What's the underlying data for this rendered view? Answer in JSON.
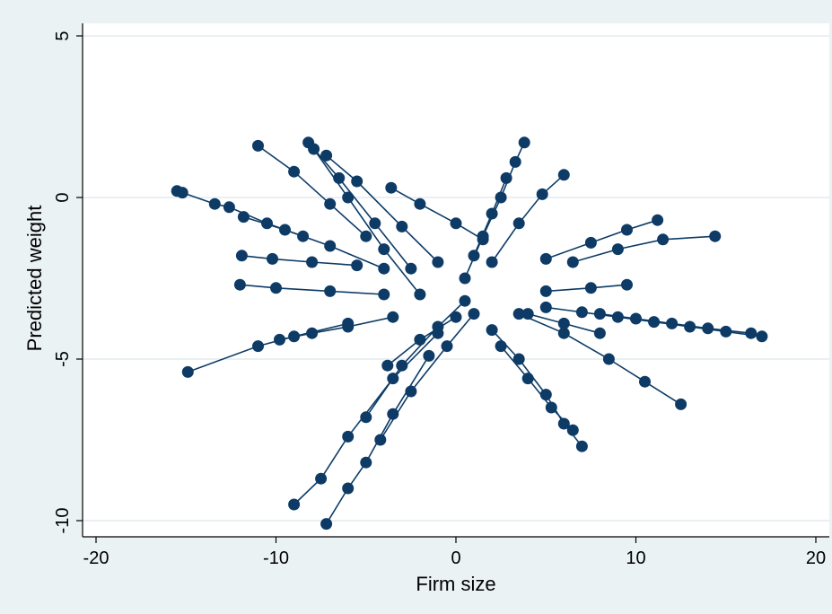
{
  "chart_data": {
    "type": "scatter",
    "title": "",
    "xlabel": "Firm size",
    "ylabel": "Predicted weight",
    "xlim": [
      -20,
      20
    ],
    "ylim": [
      -10,
      5
    ],
    "xticks": [
      -20,
      -10,
      0,
      10,
      20
    ],
    "yticks": [
      -10,
      -5,
      0,
      5
    ],
    "xtick_labels": [
      "-20",
      "-10",
      "0",
      "10",
      "20"
    ],
    "ytick_labels": [
      "-10",
      "-5",
      "0",
      "5"
    ],
    "grid": "horizontal",
    "legend": "none",
    "marker_color": "#0d3b66",
    "background_color": "#eaf2f3",
    "plot_background_color": "#ffffff",
    "grid_color": "#dde8ea",
    "series_style": "connected scatter (markers joined by lines, one line per firm)",
    "series": [
      {
        "points": [
          [
            -15.5,
            0.2
          ],
          [
            -15.2,
            0.15
          ],
          [
            -13.4,
            -0.2
          ],
          [
            -12.6,
            -0.3
          ],
          [
            -10.5,
            -0.8
          ],
          [
            -8.5,
            -1.2
          ]
        ]
      },
      {
        "points": [
          [
            -14.9,
            -5.4
          ],
          [
            -11.0,
            -4.6
          ],
          [
            -9.0,
            -4.3
          ],
          [
            -6.0,
            -3.9
          ]
        ]
      },
      {
        "points": [
          [
            -12.0,
            -2.7
          ],
          [
            -10.0,
            -2.8
          ],
          [
            -7.0,
            -2.9
          ],
          [
            -4.0,
            -3.0
          ]
        ]
      },
      {
        "points": [
          [
            -11.9,
            -1.8
          ],
          [
            -10.2,
            -1.9
          ],
          [
            -8.0,
            -2.0
          ],
          [
            -5.5,
            -2.1
          ]
        ]
      },
      {
        "points": [
          [
            -11.0,
            1.6
          ],
          [
            -9.0,
            0.8
          ],
          [
            -7.0,
            -0.2
          ],
          [
            -5.0,
            -1.2
          ]
        ]
      },
      {
        "points": [
          [
            -8.2,
            1.7
          ],
          [
            -6.5,
            0.6
          ],
          [
            -4.5,
            -0.8
          ],
          [
            -2.5,
            -2.2
          ]
        ]
      },
      {
        "points": [
          [
            -7.9,
            1.5
          ],
          [
            -6.0,
            0.0
          ],
          [
            -4.0,
            -1.6
          ],
          [
            -2.0,
            -3.0
          ]
        ]
      },
      {
        "points": [
          [
            -7.2,
            1.3
          ],
          [
            -5.5,
            0.5
          ],
          [
            -3.0,
            -0.9
          ],
          [
            -1.0,
            -2.0
          ]
        ]
      },
      {
        "points": [
          [
            -3.6,
            0.3
          ],
          [
            -2.0,
            -0.2
          ],
          [
            0.0,
            -0.8
          ],
          [
            1.5,
            -1.3
          ]
        ]
      },
      {
        "points": [
          [
            -9.0,
            -9.5
          ],
          [
            -7.5,
            -8.7
          ],
          [
            -6.0,
            -7.4
          ],
          [
            -3.5,
            -5.6
          ],
          [
            -1.0,
            -4.2
          ]
        ]
      },
      {
        "points": [
          [
            -7.2,
            -10.1
          ],
          [
            -6.0,
            -9.0
          ],
          [
            -5.0,
            -8.2
          ],
          [
            -3.5,
            -6.7
          ],
          [
            -1.5,
            -4.9
          ]
        ]
      },
      {
        "points": [
          [
            -5.0,
            -6.8
          ],
          [
            -3.0,
            -5.2
          ],
          [
            -1.0,
            -4.0
          ],
          [
            0.5,
            -3.2
          ]
        ]
      },
      {
        "points": [
          [
            -4.2,
            -7.5
          ],
          [
            -2.5,
            -6.0
          ],
          [
            -0.5,
            -4.6
          ],
          [
            1.0,
            -3.6
          ]
        ]
      },
      {
        "points": [
          [
            -3.8,
            -5.2
          ],
          [
            -2.0,
            -4.4
          ],
          [
            0.0,
            -3.7
          ]
        ]
      },
      {
        "points": [
          [
            3.8,
            1.7
          ],
          [
            3.3,
            1.1
          ],
          [
            2.5,
            0.0
          ],
          [
            1.5,
            -1.2
          ],
          [
            0.5,
            -2.5
          ]
        ]
      },
      {
        "points": [
          [
            6.0,
            0.7
          ],
          [
            4.8,
            0.1
          ],
          [
            3.5,
            -0.8
          ],
          [
            2.0,
            -2.0
          ]
        ]
      },
      {
        "points": [
          [
            2.8,
            0.6
          ],
          [
            2.0,
            -0.5
          ],
          [
            1.0,
            -1.8
          ]
        ]
      },
      {
        "points": [
          [
            14.4,
            -1.2
          ],
          [
            11.5,
            -1.3
          ],
          [
            9.0,
            -1.6
          ],
          [
            6.5,
            -2.0
          ]
        ]
      },
      {
        "points": [
          [
            11.2,
            -0.7
          ],
          [
            9.5,
            -1.0
          ],
          [
            7.5,
            -1.4
          ],
          [
            5.0,
            -1.9
          ]
        ]
      },
      {
        "points": [
          [
            17.0,
            -4.3
          ],
          [
            15.0,
            -4.15
          ],
          [
            13.0,
            -4.0
          ],
          [
            11.0,
            -3.85
          ],
          [
            9.0,
            -3.7
          ],
          [
            7.0,
            -3.55
          ],
          [
            5.0,
            -3.4
          ]
        ]
      },
      {
        "points": [
          [
            16.4,
            -4.2
          ],
          [
            14.0,
            -4.05
          ],
          [
            12.0,
            -3.9
          ],
          [
            10.0,
            -3.75
          ],
          [
            8.0,
            -3.6
          ]
        ]
      },
      {
        "points": [
          [
            12.5,
            -6.4
          ],
          [
            10.5,
            -5.7
          ],
          [
            8.5,
            -5.0
          ],
          [
            6.0,
            -4.2
          ],
          [
            3.5,
            -3.6
          ]
        ]
      },
      {
        "points": [
          [
            7.0,
            -7.7
          ],
          [
            6.0,
            -7.0
          ],
          [
            5.0,
            -6.1
          ],
          [
            3.5,
            -5.0
          ],
          [
            2.0,
            -4.1
          ]
        ]
      },
      {
        "points": [
          [
            6.5,
            -7.2
          ],
          [
            5.3,
            -6.5
          ],
          [
            4.0,
            -5.6
          ],
          [
            2.5,
            -4.6
          ]
        ]
      },
      {
        "points": [
          [
            8.0,
            -4.2
          ],
          [
            6.0,
            -3.9
          ],
          [
            4.0,
            -3.6
          ]
        ]
      },
      {
        "points": [
          [
            9.5,
            -2.7
          ],
          [
            7.5,
            -2.8
          ],
          [
            5.0,
            -2.9
          ]
        ]
      },
      {
        "points": [
          [
            -11.8,
            -0.6
          ],
          [
            -9.5,
            -1.0
          ],
          [
            -7.0,
            -1.5
          ],
          [
            -4.0,
            -2.2
          ]
        ]
      },
      {
        "points": [
          [
            -9.8,
            -4.4
          ],
          [
            -8.0,
            -4.2
          ],
          [
            -6.0,
            -4.0
          ],
          [
            -3.5,
            -3.7
          ]
        ]
      }
    ]
  }
}
